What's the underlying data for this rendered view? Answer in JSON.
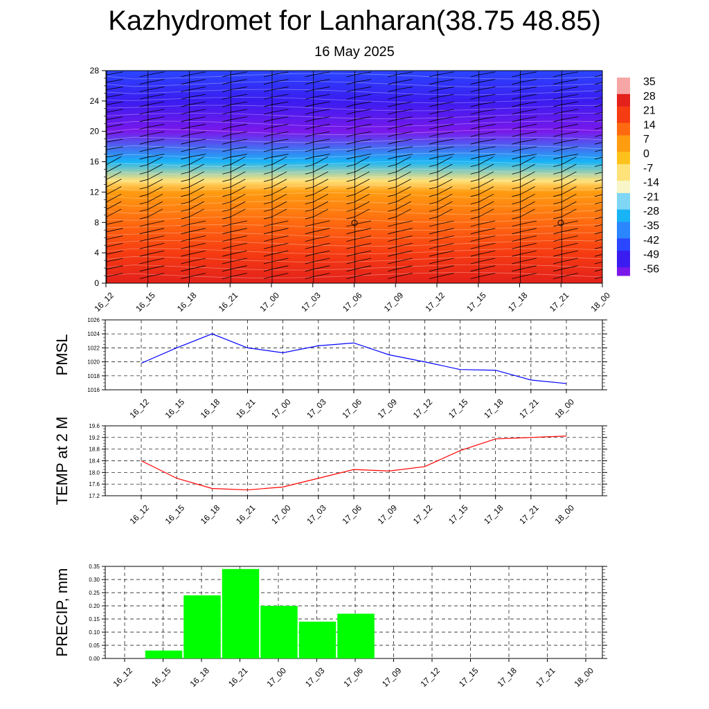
{
  "header": {
    "title": "Kazhydromet for Lanharan(38.75 48.85)",
    "date": "16 May 2025"
  },
  "colors": {
    "pmsl_line": "#0000ff",
    "temp_line": "#ff0000",
    "precip_bar": "#00ff00",
    "grid": "#000000"
  },
  "time_labels": [
    "16_12",
    "16_15",
    "16_18",
    "16_21",
    "17_00",
    "17_03",
    "17_06",
    "17_09",
    "17_12",
    "17_15",
    "17_18",
    "17_21",
    "18_00"
  ],
  "chart_data": [
    {
      "type": "heatmap",
      "title": "",
      "xlabel": "",
      "ylabel": "",
      "x": [
        "16_12",
        "16_15",
        "16_18",
        "16_21",
        "17_00",
        "17_03",
        "17_06",
        "17_09",
        "17_12",
        "17_15",
        "17_18",
        "17_21",
        "18_00"
      ],
      "y_ticks": [
        "0",
        "4",
        "8",
        "12",
        "16",
        "20",
        "24",
        "28"
      ],
      "ylim": [
        0,
        28
      ],
      "colorbar_ticks": [
        "35",
        "28",
        "21",
        "14",
        "7",
        "0",
        "-7",
        "-14",
        "-21",
        "-28",
        "-35",
        "-42",
        "-49",
        "-56"
      ],
      "colorbar_range": [
        -60,
        36
      ],
      "temperature_profile": [
        {
          "level": 0,
          "value": 22
        },
        {
          "level": 4,
          "value": 18
        },
        {
          "level": 8,
          "value": 12
        },
        {
          "level": 12,
          "value": 2
        },
        {
          "level": 13.5,
          "value": -12
        },
        {
          "level": 16,
          "value": -30
        },
        {
          "level": 20,
          "value": -56
        },
        {
          "level": 24,
          "value": -50
        },
        {
          "level": 28,
          "value": -48
        }
      ],
      "overlay": "wind barbs"
    },
    {
      "type": "line",
      "title": "",
      "xlabel": "",
      "ylabel": "PMSL",
      "x": [
        "16_12",
        "16_15",
        "16_18",
        "16_21",
        "17_00",
        "17_03",
        "17_06",
        "17_09",
        "17_12",
        "17_15",
        "17_18",
        "17_21",
        "18_00"
      ],
      "y_ticks": [
        "1016",
        "1018",
        "1020",
        "1022",
        "1024",
        "1026"
      ],
      "ylim": [
        1016,
        1026
      ],
      "grid": true,
      "series": [
        {
          "values": [
            1019.8,
            1022.0,
            1024.0,
            1022.0,
            1021.3,
            1022.3,
            1022.7,
            1021.0,
            1020.0,
            1018.9,
            1018.8,
            1017.4,
            1016.9
          ]
        }
      ]
    },
    {
      "type": "line",
      "title": "",
      "xlabel": "",
      "ylabel": "TEMP at 2 M",
      "x": [
        "16_12",
        "16_15",
        "16_18",
        "16_21",
        "17_00",
        "17_03",
        "17_06",
        "17_09",
        "17_12",
        "17_15",
        "17_18",
        "17_21",
        "18_00"
      ],
      "y_ticks": [
        "17.2",
        "17.6",
        "18.0",
        "18.4",
        "18.8",
        "19.2",
        "19.6"
      ],
      "ylim": [
        17.2,
        19.6
      ],
      "grid": true,
      "series": [
        {
          "values": [
            18.4,
            17.8,
            17.45,
            17.4,
            17.5,
            17.8,
            18.1,
            18.05,
            18.2,
            18.75,
            19.15,
            19.2,
            19.25
          ]
        }
      ]
    },
    {
      "type": "bar",
      "title": "",
      "xlabel": "",
      "ylabel": "PRECIP, mm",
      "categories": [
        "16_12",
        "16_15",
        "16_18",
        "16_21",
        "17_00",
        "17_03",
        "17_06",
        "17_09",
        "17_12",
        "17_15",
        "17_18",
        "17_21",
        "18_00"
      ],
      "y_ticks": [
        "0.00",
        "0.05",
        "0.10",
        "0.15",
        "0.20",
        "0.25",
        "0.30",
        "0.35"
      ],
      "ylim": [
        0,
        0.35
      ],
      "grid": true,
      "values": [
        0.0,
        0.03,
        0.24,
        0.34,
        0.2,
        0.14,
        0.17,
        0.0,
        0.0,
        0.0,
        0.0,
        0.0,
        0.0
      ]
    }
  ]
}
